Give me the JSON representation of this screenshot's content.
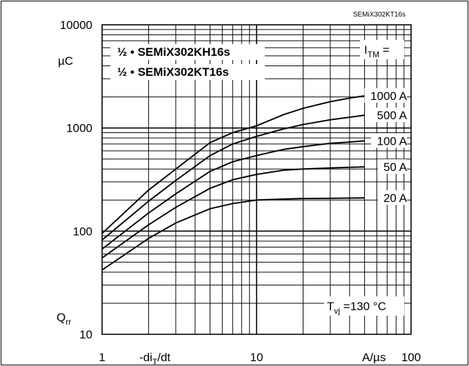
{
  "chart_data": {
    "type": "line",
    "part_label": "SEMiX302KT16s",
    "legend": [
      "½ • SEMiX302KH16s",
      "½ • SEMiX302KT16s"
    ],
    "y_unit": "µC",
    "y_label_main": "Q",
    "y_label_sub": "rr",
    "x_label_main": "-di",
    "x_label_sub": "T",
    "x_label_tail": "/dt",
    "x_unit": "A/µs",
    "current_label_main": "I",
    "current_label_sub": "TM",
    "current_label_tail": " =",
    "temp_label_main": "T",
    "temp_label_sub": "vj",
    "temp_label_tail": " =130 °C",
    "x_scale": "log",
    "y_scale": "log",
    "xlim": [
      1,
      100
    ],
    "ylim": [
      10,
      10000
    ],
    "x_ticks": [
      "1",
      "10",
      "100"
    ],
    "y_ticks": [
      "10000",
      "1000",
      "100",
      "10"
    ],
    "series": [
      {
        "name": "1000 A",
        "x": [
          1,
          2,
          3,
          5,
          7,
          10,
          15,
          20,
          30,
          40,
          50
        ],
        "y": [
          95,
          250,
          400,
          720,
          900,
          1050,
          1350,
          1550,
          1800,
          1950,
          2050
        ]
      },
      {
        "name": "500 A",
        "x": [
          1,
          2,
          3,
          5,
          7,
          10,
          15,
          20,
          30,
          40,
          50
        ],
        "y": [
          82,
          195,
          310,
          540,
          700,
          830,
          980,
          1080,
          1200,
          1270,
          1330
        ]
      },
      {
        "name": "100 A",
        "x": [
          1,
          2,
          3,
          5,
          7,
          10,
          15,
          20,
          30,
          40,
          50
        ],
        "y": [
          67,
          150,
          230,
          380,
          470,
          540,
          620,
          660,
          710,
          730,
          750
        ]
      },
      {
        "name": "50 A",
        "x": [
          1,
          2,
          3,
          5,
          7,
          10,
          15,
          20,
          30,
          40,
          50
        ],
        "y": [
          55,
          115,
          170,
          260,
          315,
          355,
          390,
          400,
          410,
          415,
          420
        ]
      },
      {
        "name": "20 A",
        "x": [
          1,
          2,
          3,
          5,
          7,
          10,
          15,
          20,
          30,
          40,
          50
        ],
        "y": [
          42,
          85,
          120,
          165,
          185,
          200,
          205,
          207,
          208,
          209,
          210
        ]
      }
    ]
  }
}
